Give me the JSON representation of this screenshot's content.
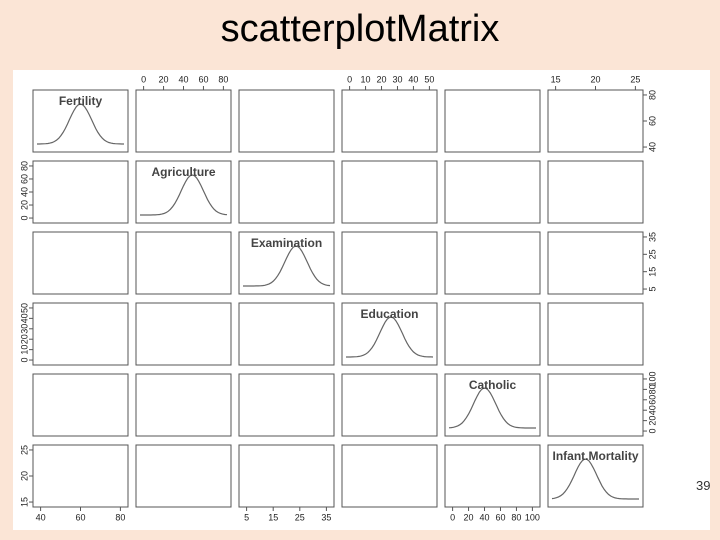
{
  "title": "scatterplotMatrix",
  "page_number": "39",
  "variables": [
    {
      "name": "Fertility",
      "ticks": [
        "40",
        "60",
        "80"
      ]
    },
    {
      "name": "Agriculture",
      "ticks": [
        "0",
        "20",
        "40",
        "60",
        "80"
      ]
    },
    {
      "name": "Examination",
      "ticks": [
        "5",
        "15",
        "25",
        "35"
      ]
    },
    {
      "name": "Education",
      "ticks": [
        "0",
        "10",
        "20",
        "30",
        "40",
        "50"
      ]
    },
    {
      "name": "Catholic",
      "ticks": [
        "0",
        "20",
        "40",
        "60",
        "80",
        "100"
      ]
    },
    {
      "name": "Infant.Mortality",
      "ticks": [
        "15",
        "20",
        "25"
      ]
    }
  ]
}
